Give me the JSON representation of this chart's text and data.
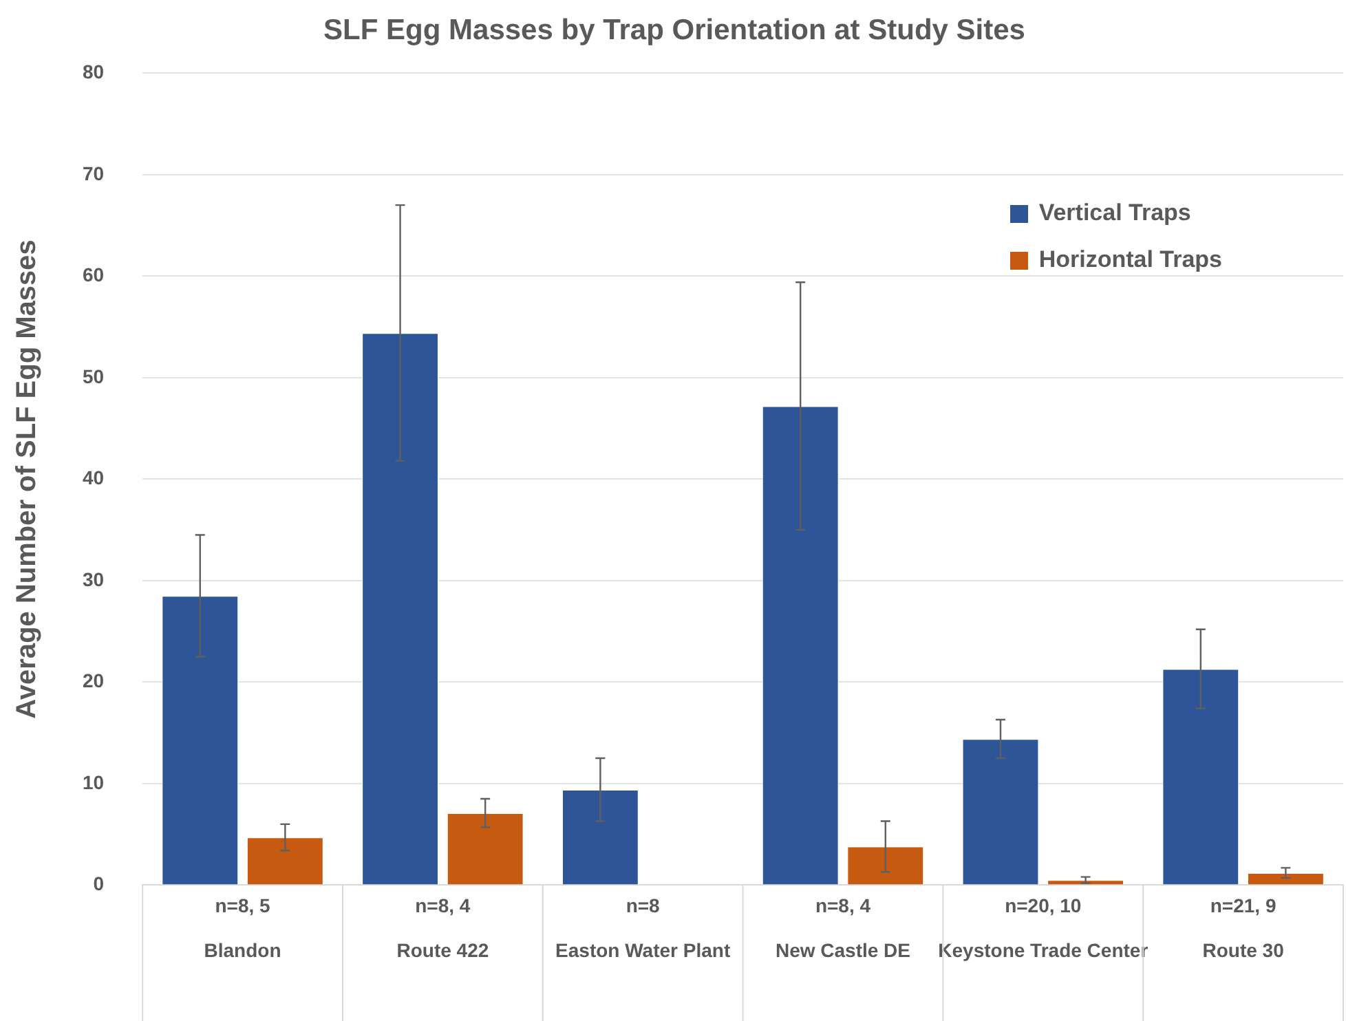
{
  "chart_data": {
    "type": "bar",
    "title": "SLF Egg Masses by Trap Orientation at Study Sites",
    "ylabel": "Average Number of SLF Egg Masses",
    "categories": [
      "Blandon",
      "Route 422",
      "Easton Water Plant",
      "New Castle DE",
      "Keystone Trade Center",
      "Route 30"
    ],
    "series": [
      {
        "name": "Vertical Traps",
        "color": "#2e5597",
        "values": [
          28.5,
          54.4,
          9.4,
          47.2,
          14.4,
          21.3
        ],
        "errors": [
          6.0,
          12.6,
          3.1,
          12.2,
          1.9,
          3.9
        ]
      },
      {
        "name": "Horizontal Traps",
        "color": "#c65a11",
        "values": [
          4.7,
          7.1,
          null,
          3.8,
          0.5,
          1.2
        ],
        "errors": [
          1.3,
          1.4,
          null,
          2.5,
          0.3,
          0.5
        ]
      }
    ],
    "annotations": [
      "n=8, 5",
      "n=8, 4",
      "n=8",
      "n=8, 4",
      "n=20, 10",
      "n=21, 9"
    ],
    "ylim": [
      0,
      80
    ],
    "yticks": [
      0,
      10,
      20,
      30,
      40,
      50,
      60,
      70,
      80
    ],
    "grid": "y",
    "legend": "top right"
  }
}
